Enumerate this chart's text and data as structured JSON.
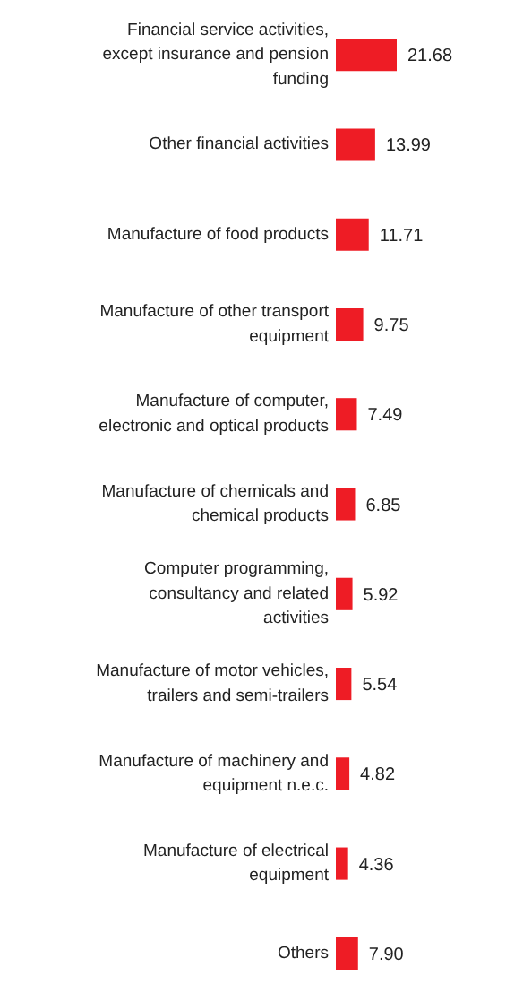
{
  "chart_data": {
    "type": "bar",
    "orientation": "horizontal",
    "data_labels": true,
    "color": "#ee1c25",
    "categories": [
      "Financial service activities, except insurance and pension funding",
      "Other financial activities",
      "Manufacture of food products",
      "Manufacture of other transport equipment",
      "Manufacture of computer, electronic and optical products",
      "Manufacture of chemicals and chemical products",
      "Computer programming, consultancy and related activities",
      "Manufacture of motor vehicles, trailers and semi-trailers",
      "Manufacture of machinery and equipment n.e.c.",
      "Manufacture of electrical equipment",
      "Others"
    ],
    "values": [
      21.68,
      13.99,
      11.71,
      9.75,
      7.49,
      6.85,
      5.92,
      5.54,
      4.82,
      4.36,
      7.9
    ],
    "value_labels": [
      "21.68",
      "13.99",
      "11.71",
      "9.75",
      "7.49",
      "6.85",
      "5.92",
      "5.54",
      "4.82",
      "4.36",
      "7.90"
    ]
  }
}
